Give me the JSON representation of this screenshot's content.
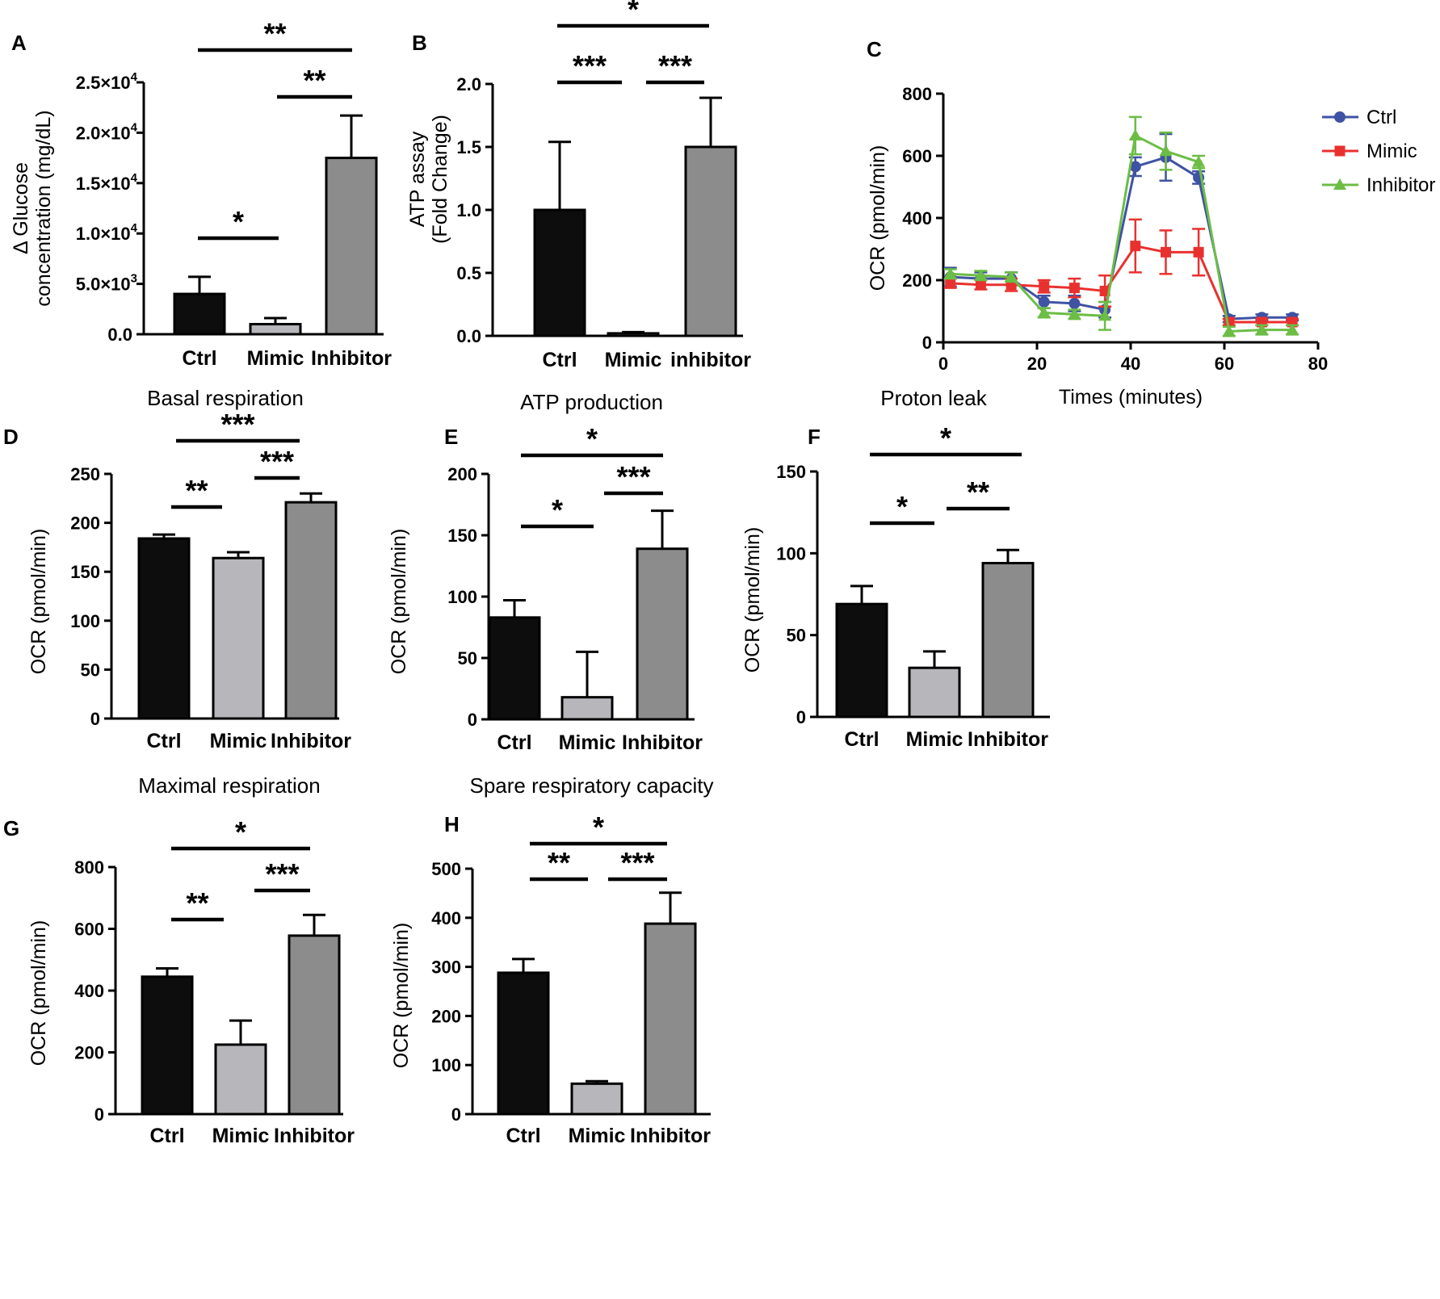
{
  "figure": {
    "id_hint": "Figure with panels A-H"
  },
  "chart_data": [
    {
      "panel": "A",
      "type": "bar",
      "title": "",
      "categories": [
        "Ctrl",
        "Mimic",
        "Inhibitor"
      ],
      "values": [
        4000,
        1000,
        17500
      ],
      "errors": [
        1700,
        600,
        4200
      ],
      "bar_colors": [
        "#0d0d0d",
        "#b6b6bb",
        "#8c8c8c"
      ],
      "ylim": [
        0,
        25000
      ],
      "yticks": [
        0,
        5000,
        10000,
        15000,
        20000,
        25000
      ],
      "ytick_labels": [
        {
          "base": "0.0",
          "exp": ""
        },
        {
          "base": "5.0×10",
          "exp": "3"
        },
        {
          "base": "1.0×10",
          "exp": "4"
        },
        {
          "base": "1.5×10",
          "exp": "4"
        },
        {
          "base": "2.0×10",
          "exp": "4"
        },
        {
          "base": "2.5×10",
          "exp": "4"
        }
      ],
      "ylabel": [
        "Δ Glucose",
        "concentration (mg/dL)"
      ],
      "xlabel": "",
      "significance": [
        {
          "from": 0,
          "to": 1,
          "label": "*"
        },
        {
          "from": 1,
          "to": 2,
          "label": "**"
        },
        {
          "from": 0,
          "to": 2,
          "label": "**"
        }
      ]
    },
    {
      "panel": "B",
      "type": "bar",
      "title": "",
      "categories": [
        "Ctrl",
        "Mimic",
        "inhibitor"
      ],
      "values": [
        1.0,
        0.02,
        1.5
      ],
      "errors": [
        0.54,
        0.01,
        0.39
      ],
      "bar_colors": [
        "#0d0d0d",
        "#b6b6bb",
        "#8c8c8c"
      ],
      "ylim": [
        0,
        2.0
      ],
      "yticks": [
        0,
        0.5,
        1.0,
        1.5,
        2.0
      ],
      "ytick_labels": [
        {
          "base": "0.0",
          "exp": ""
        },
        {
          "base": "0.5",
          "exp": ""
        },
        {
          "base": "1.0",
          "exp": ""
        },
        {
          "base": "1.5",
          "exp": ""
        },
        {
          "base": "2.0",
          "exp": ""
        }
      ],
      "ylabel": [
        "ATP assay",
        "(Fold Change)"
      ],
      "xlabel": "",
      "significance": [
        {
          "from": 0,
          "to": 1,
          "label": "***"
        },
        {
          "from": 1,
          "to": 2,
          "label": "***"
        },
        {
          "from": 0,
          "to": 2,
          "label": "*"
        }
      ]
    },
    {
      "panel": "C",
      "type": "line",
      "title": "",
      "x": [
        1.5,
        8,
        14.5,
        21.5,
        28,
        34.5,
        41,
        47.5,
        54.5,
        61,
        68,
        74.5
      ],
      "series": [
        {
          "name": "Ctrl",
          "color": "#3f52a4",
          "marker": "circle",
          "values": [
            210,
            205,
            205,
            130,
            125,
            105,
            565,
            595,
            530,
            75,
            80,
            80
          ],
          "errors": [
            30,
            20,
            20,
            20,
            25,
            25,
            30,
            75,
            20,
            10,
            10,
            10
          ]
        },
        {
          "name": "Mimic",
          "color": "#e8312f",
          "marker": "square",
          "values": [
            190,
            185,
            185,
            180,
            175,
            165,
            310,
            290,
            290,
            65,
            65,
            65
          ],
          "errors": [
            15,
            15,
            20,
            20,
            30,
            50,
            85,
            70,
            75,
            10,
            10,
            10
          ]
        },
        {
          "name": "Inhibitor",
          "color": "#6cbd45",
          "marker": "triangle",
          "values": [
            220,
            215,
            210,
            95,
            90,
            85,
            665,
            615,
            580,
            35,
            40,
            40
          ],
          "errors": [
            15,
            15,
            15,
            15,
            15,
            45,
            60,
            60,
            20,
            15,
            15,
            15
          ]
        }
      ],
      "xlim": [
        0,
        80
      ],
      "xticks": [
        0,
        20,
        40,
        60,
        80
      ],
      "ylim": [
        0,
        800
      ],
      "yticks": [
        0,
        200,
        400,
        600,
        800
      ],
      "xlabel": "Times (minutes)",
      "ylabel": "OCR (pmol/min)",
      "legend_position": "top-right"
    },
    {
      "panel": "D",
      "type": "bar",
      "title": "Basal respiration",
      "categories": [
        "Ctrl",
        "Mimic",
        "Inhibitor"
      ],
      "values": [
        184,
        164,
        221
      ],
      "errors": [
        4,
        6,
        9
      ],
      "bar_colors": [
        "#0d0d0d",
        "#b6b6bb",
        "#8c8c8c"
      ],
      "ylim": [
        0,
        250
      ],
      "yticks": [
        0,
        50,
        100,
        150,
        200,
        250
      ],
      "ytick_labels": [
        {
          "base": "0",
          "exp": ""
        },
        {
          "base": "50",
          "exp": ""
        },
        {
          "base": "100",
          "exp": ""
        },
        {
          "base": "150",
          "exp": ""
        },
        {
          "base": "200",
          "exp": ""
        },
        {
          "base": "250",
          "exp": ""
        }
      ],
      "ylabel": [
        "OCR (pmol/min)"
      ],
      "xlabel": "",
      "significance": [
        {
          "from": 0,
          "to": 1,
          "label": "**"
        },
        {
          "from": 1,
          "to": 2,
          "label": "***"
        },
        {
          "from": 0,
          "to": 2,
          "label": "***"
        }
      ]
    },
    {
      "panel": "E",
      "type": "bar",
      "title": "ATP production",
      "categories": [
        "Ctrl",
        "Mimic",
        "Inhibitor"
      ],
      "values": [
        83,
        18,
        139
      ],
      "errors": [
        14,
        37,
        31
      ],
      "bar_colors": [
        "#0d0d0d",
        "#b6b6bb",
        "#8c8c8c"
      ],
      "ylim": [
        0,
        200
      ],
      "yticks": [
        0,
        50,
        100,
        150,
        200
      ],
      "ytick_labels": [
        {
          "base": "0",
          "exp": ""
        },
        {
          "base": "50",
          "exp": ""
        },
        {
          "base": "100",
          "exp": ""
        },
        {
          "base": "150",
          "exp": ""
        },
        {
          "base": "200",
          "exp": ""
        }
      ],
      "ylabel": [
        "OCR (pmol/min)"
      ],
      "xlabel": "",
      "significance": [
        {
          "from": 0,
          "to": 1,
          "label": "*"
        },
        {
          "from": 1,
          "to": 2,
          "label": "***"
        },
        {
          "from": 0,
          "to": 2,
          "label": "*"
        }
      ]
    },
    {
      "panel": "F",
      "type": "bar",
      "title": "Proton leak",
      "categories": [
        "Ctrl",
        "Mimic",
        "Inhibitor"
      ],
      "values": [
        69,
        30,
        94
      ],
      "errors": [
        11,
        10,
        8
      ],
      "bar_colors": [
        "#0d0d0d",
        "#b6b6bb",
        "#8c8c8c"
      ],
      "ylim": [
        0,
        150
      ],
      "yticks": [
        0,
        50,
        100,
        150
      ],
      "ytick_labels": [
        {
          "base": "0",
          "exp": ""
        },
        {
          "base": "50",
          "exp": ""
        },
        {
          "base": "100",
          "exp": ""
        },
        {
          "base": "150",
          "exp": ""
        }
      ],
      "ylabel": [
        "OCR (pmol/min)"
      ],
      "xlabel": "",
      "significance": [
        {
          "from": 0,
          "to": 1,
          "label": "*"
        },
        {
          "from": 1,
          "to": 2,
          "label": "**"
        },
        {
          "from": 0,
          "to": 2,
          "label": "*"
        }
      ]
    },
    {
      "panel": "G",
      "type": "bar",
      "title": "Maximal respiration",
      "categories": [
        "Ctrl",
        "Mimic",
        "Inhibitor"
      ],
      "values": [
        445,
        225,
        578
      ],
      "errors": [
        27,
        78,
        67
      ],
      "bar_colors": [
        "#0d0d0d",
        "#b6b6bb",
        "#8c8c8c"
      ],
      "ylim": [
        0,
        800
      ],
      "yticks": [
        0,
        200,
        400,
        600,
        800
      ],
      "ytick_labels": [
        {
          "base": "0",
          "exp": ""
        },
        {
          "base": "200",
          "exp": ""
        },
        {
          "base": "400",
          "exp": ""
        },
        {
          "base": "600",
          "exp": ""
        },
        {
          "base": "800",
          "exp": ""
        }
      ],
      "ylabel": [
        "OCR (pmol/min)"
      ],
      "xlabel": "",
      "significance": [
        {
          "from": 0,
          "to": 1,
          "label": "**"
        },
        {
          "from": 1,
          "to": 2,
          "label": "***"
        },
        {
          "from": 0,
          "to": 2,
          "label": "*"
        }
      ]
    },
    {
      "panel": "H",
      "type": "bar",
      "title": "Spare respiratory capacity",
      "categories": [
        "Ctrl",
        "Mimic",
        "Inhibitor"
      ],
      "values": [
        288,
        62,
        388
      ],
      "errors": [
        28,
        5,
        63
      ],
      "bar_colors": [
        "#0d0d0d",
        "#b6b6bb",
        "#8c8c8c"
      ],
      "ylim": [
        0,
        500
      ],
      "yticks": [
        0,
        100,
        200,
        300,
        400,
        500
      ],
      "ytick_labels": [
        {
          "base": "0",
          "exp": ""
        },
        {
          "base": "100",
          "exp": ""
        },
        {
          "base": "200",
          "exp": ""
        },
        {
          "base": "300",
          "exp": ""
        },
        {
          "base": "400",
          "exp": ""
        },
        {
          "base": "500",
          "exp": ""
        }
      ],
      "ylabel": [
        "OCR (pmol/min)"
      ],
      "xlabel": "",
      "significance": [
        {
          "from": 0,
          "to": 1,
          "label": "**"
        },
        {
          "from": 1,
          "to": 2,
          "label": "***"
        },
        {
          "from": 0,
          "to": 2,
          "label": "*"
        }
      ]
    }
  ]
}
